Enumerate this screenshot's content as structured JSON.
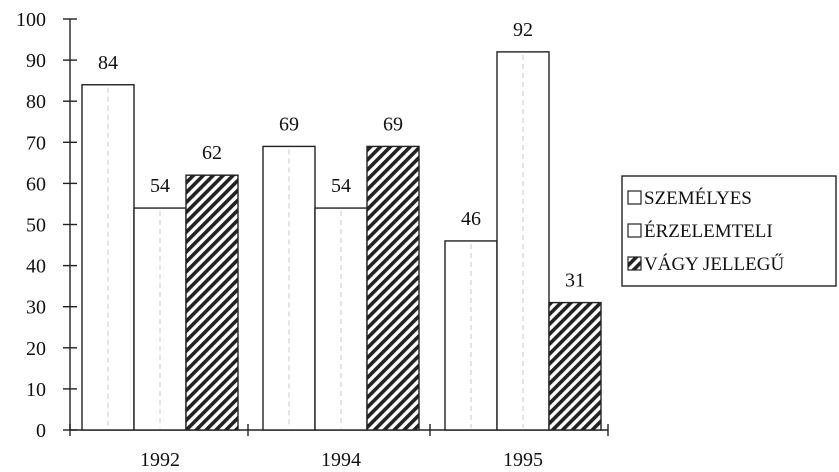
{
  "chart_data": {
    "type": "bar",
    "categories": [
      "1992",
      "1994",
      "1995"
    ],
    "series": [
      {
        "name": "SZEMÉLYES",
        "values": [
          84,
          69,
          46
        ],
        "pattern": "plain"
      },
      {
        "name": "ÉRZELEMTELI",
        "values": [
          54,
          54,
          92
        ],
        "pattern": "plain"
      },
      {
        "name": "VÁGY JELLEGŰ",
        "values": [
          62,
          69,
          31
        ],
        "pattern": "hatched"
      }
    ],
    "ylim": [
      0,
      100
    ],
    "yticks": [
      "0",
      "10",
      "20",
      "30",
      "40",
      "50",
      "60",
      "70",
      "80",
      "90",
      "100"
    ],
    "title": "",
    "xlabel": "",
    "ylabel": "",
    "legend": "right",
    "grid": false,
    "colors": {
      "bar_fill": "#ffffff",
      "outline": "#222222",
      "hatch": "#222222"
    }
  }
}
